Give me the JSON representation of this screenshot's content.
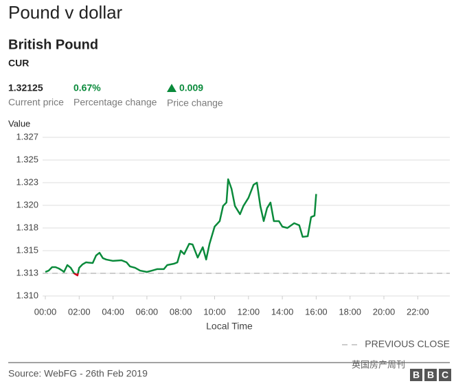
{
  "header": {
    "title": "Pound v dollar",
    "subtitle": "British Pound",
    "code": "CUR",
    "stats": [
      {
        "value": "1.32125",
        "label": "Current price"
      },
      {
        "value": "0.67%",
        "label": "Percentage change"
      },
      {
        "value": "0.009",
        "label": "Price change"
      }
    ]
  },
  "chart_data": {
    "type": "line",
    "y_label": "Value",
    "x_label": "Local Time",
    "x": [
      0,
      0.2,
      0.4,
      0.6,
      0.8,
      1.0,
      1.1,
      1.3,
      1.5,
      1.7,
      1.9,
      2.0,
      2.2,
      2.4,
      2.8,
      3.0,
      3.2,
      3.4,
      3.6,
      4.0,
      4.5,
      4.8,
      5.0,
      5.3,
      5.6,
      6.0,
      6.3,
      6.6,
      7.0,
      7.2,
      7.6,
      7.8,
      8.0,
      8.2,
      8.5,
      8.7,
      9.0,
      9.3,
      9.5,
      9.7,
      10.0,
      10.3,
      10.5,
      10.7,
      10.8,
      11.0,
      11.2,
      11.5,
      11.7,
      12.0,
      12.3,
      12.5,
      12.7,
      12.9,
      13.1,
      13.3,
      13.5,
      13.8,
      14.0,
      14.3,
      14.7,
      15.0,
      15.2,
      15.5,
      15.7,
      15.9,
      16.0
    ],
    "series": [
      {
        "name": "British Pound",
        "color": "#0a8a3b",
        "values": [
          1.31265,
          1.3128,
          1.31318,
          1.31318,
          1.31303,
          1.3128,
          1.31265,
          1.31341,
          1.31311,
          1.3125,
          1.31227,
          1.31311,
          1.31349,
          1.31371,
          1.31364,
          1.31447,
          1.31477,
          1.31417,
          1.31402,
          1.31387,
          1.31394,
          1.31371,
          1.31326,
          1.31311,
          1.3128,
          1.31265,
          1.3128,
          1.31296,
          1.31296,
          1.31341,
          1.31356,
          1.31371,
          1.315,
          1.31462,
          1.31576,
          1.31568,
          1.31424,
          1.31538,
          1.31402,
          1.31576,
          1.31765,
          1.31826,
          1.31993,
          1.32031,
          1.32288,
          1.32182,
          1.31993,
          1.31902,
          1.31993,
          1.32083,
          1.32227,
          1.3225,
          1.31993,
          1.31826,
          1.3197,
          1.32031,
          1.31826,
          1.31826,
          1.31765,
          1.3175,
          1.31803,
          1.3178,
          1.31652,
          1.31659,
          1.31871,
          1.31886,
          1.32125
        ]
      }
    ],
    "below_close_color": "#d0021b",
    "previous_close": 1.3125,
    "previous_close_label": "PREVIOUS CLOSE",
    "xlim": [
      0,
      24
    ],
    "xticks": [
      {
        "value": 0,
        "label": "00:00"
      },
      {
        "value": 2,
        "label": "02:00"
      },
      {
        "value": 4,
        "label": "04:00"
      },
      {
        "value": 6,
        "label": "06:00"
      },
      {
        "value": 8,
        "label": "08:00"
      },
      {
        "value": 10,
        "label": "10:00"
      },
      {
        "value": 12,
        "label": "12:00"
      },
      {
        "value": 14,
        "label": "14:00"
      },
      {
        "value": 16,
        "label": "16:00"
      },
      {
        "value": 18,
        "label": "18:00"
      },
      {
        "value": 20,
        "label": "20:00"
      },
      {
        "value": 22,
        "label": "22:00"
      }
    ],
    "ylim": [
      1.31,
      1.3275
    ],
    "yticks": [
      {
        "value": 1.31,
        "label": "1.310"
      },
      {
        "value": 1.3125,
        "label": "1.313"
      },
      1.315,
      {
        "value": 1.3175,
        "label": "1.318"
      },
      {
        "value": 1.32,
        "label": "1.320"
      },
      {
        "value": 1.3225,
        "label": "1.323"
      },
      1.325,
      {
        "value": 1.3275,
        "label": "1.327"
      }
    ],
    "grid": true
  },
  "footer": {
    "source": "Source: WebFG - 26th Feb 2019",
    "watermark": "英国房产周刊",
    "logo": [
      "B",
      "B",
      "C"
    ]
  }
}
